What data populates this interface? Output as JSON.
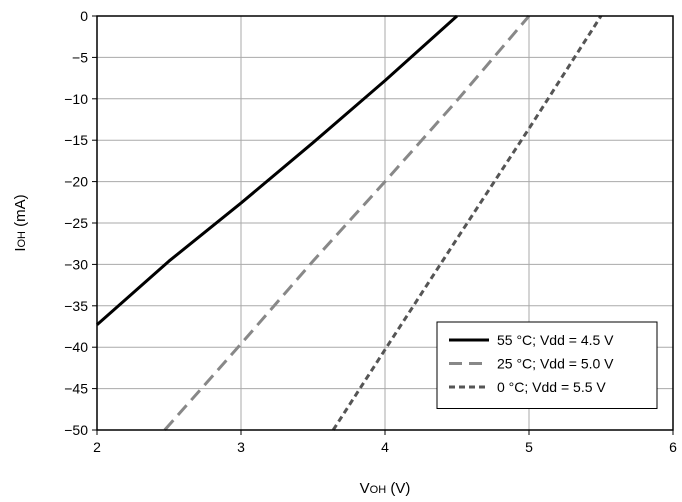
{
  "chart_data": {
    "type": "line",
    "title": "",
    "xlabel": {
      "main": "V",
      "sub": "OH",
      "unit": " (V)"
    },
    "ylabel": {
      "main": "I",
      "sub": "OH",
      "unit": " (mA)"
    },
    "xlim": [
      2,
      6
    ],
    "ylim": [
      -50,
      0
    ],
    "xticks": [
      2,
      3,
      4,
      5,
      6
    ],
    "yticks": [
      0,
      -5,
      -10,
      -15,
      -20,
      -25,
      -30,
      -35,
      -40,
      -45,
      -50
    ],
    "xtick_labels": [
      "2",
      "3",
      "4",
      "5",
      "6"
    ],
    "ytick_labels": [
      "0",
      "−5",
      "−10",
      "−15",
      "−20",
      "−25",
      "−30",
      "−35",
      "−40",
      "−45",
      "−50"
    ],
    "grid": true,
    "legend_position": "bottom-right",
    "series": [
      {
        "name": "55 °C; Vdd = 4.5 V",
        "color": "#000000",
        "dash": "solid",
        "x": [
          2.0,
          2.5,
          3.0,
          3.5,
          4.0,
          4.5
        ],
        "y": [
          -37.3,
          -29.6,
          -22.6,
          -15.3,
          -7.8,
          0
        ]
      },
      {
        "name": "25 °C; Vdd = 5.0 V",
        "color": "#888888",
        "dash": "long-dash",
        "x": [
          2.47,
          3.0,
          3.5,
          4.0,
          4.5,
          5.0
        ],
        "y": [
          -50,
          -39.6,
          -29.6,
          -20.0,
          -10.2,
          0
        ]
      },
      {
        "name": "0 °C; Vdd = 5.5 V",
        "color": "#555555",
        "dash": "short-dash",
        "x": [
          3.64,
          4.0,
          4.5,
          5.0,
          5.5
        ],
        "y": [
          -50,
          -40.3,
          -26.9,
          -13.6,
          0
        ]
      }
    ]
  }
}
